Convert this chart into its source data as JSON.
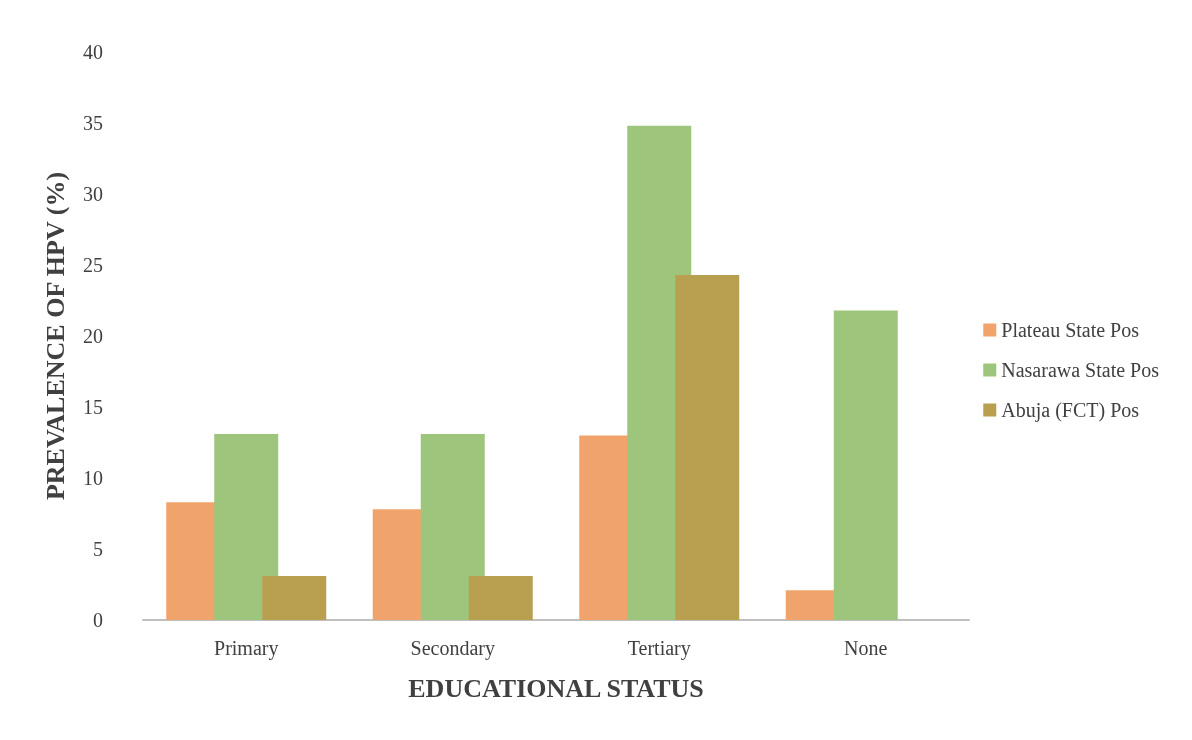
{
  "chart_data": {
    "type": "bar",
    "xlabel": "EDUCATIONAL STATUS",
    "ylabel": "PREVALENCE OF HPV (%)",
    "categories": [
      "Primary",
      "Secondary",
      "Tertiary",
      "None"
    ],
    "series": [
      {
        "name": "Plateau State Pos",
        "color": "#f0a46c",
        "values": [
          8.3,
          7.8,
          13.0,
          2.1
        ]
      },
      {
        "name": "Nasarawa State Pos",
        "color": "#9dc57c",
        "values": [
          13.1,
          13.1,
          34.8,
          21.8
        ]
      },
      {
        "name": "Abuja (FCT) Pos",
        "color": "#b8a050",
        "values": [
          3.1,
          3.1,
          24.3,
          0
        ]
      }
    ],
    "ylim": [
      0,
      40
    ],
    "yticks": [
      0,
      5,
      10,
      15,
      20,
      25,
      30,
      35,
      40
    ],
    "grid": false,
    "legend": "right"
  }
}
